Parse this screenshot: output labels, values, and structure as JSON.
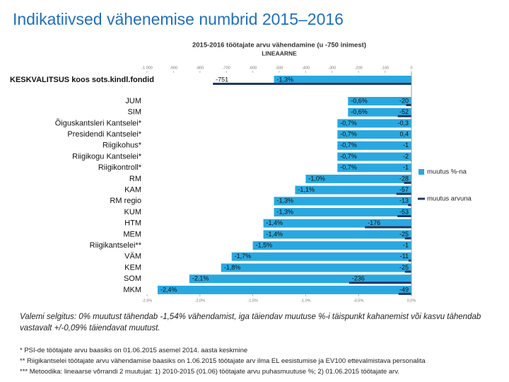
{
  "title": "Indikatiivsed vähenemise numbrid 2015–2016",
  "formula_note": "Valemi selgitus: 0% muutust tähendab -1,54% vähendamist, iga täiendav muutuse %-i täispunkt kahanemist või kasvu tähendab vastavalt +/-0,09% täiendavat muutust.",
  "footnotes": [
    "* PSI-de töötajate arvu baasiks on 01.06.2015 asemel 2014. aasta keskmine",
    "** Riigikantselei töötajate arvu vähendamise baasiks on 1.06.2015 töötajate arv ilma EL eesistumise ja EV100 ettevalmistava personalita",
    "*** Metoodika: lineaarse võrrandi 2 muutujat: 1) 2010-2015 (01.06) töötajate arvu puhasmuutuse %; 2) 01.06.2015 töötajate arv."
  ],
  "chart_data": {
    "type": "hbar",
    "title": "2015-2016 töötajate arvu vähendamine (u -750 inimest)",
    "subtitle": "LINEAARNE",
    "categories": [
      "KESKVALITSUS koos sots.kindl.fondid",
      "JUM",
      "SIM",
      "Õiguskantsleri Kantselei*",
      "Presidendi Kantselei*",
      "Riigikohus*",
      "Riigikogu Kantselei*",
      "Riigikontroll*",
      "RM",
      "KAM",
      "RM regio",
      "KUM",
      "HTM",
      "MEM",
      "Riigikantselei**",
      "VÄM",
      "KEM",
      "SOM",
      "MKM"
    ],
    "series": [
      {
        "name": "muutus %-na",
        "color": "#29a8e0",
        "axis": "x",
        "values": [
          -1.3,
          -0.6,
          -0.6,
          -0.7,
          -0.7,
          -0.7,
          -0.7,
          -0.7,
          -1.0,
          -1.1,
          -1.3,
          -1.3,
          -1.4,
          -1.4,
          -1.5,
          -1.7,
          -1.8,
          -2.1,
          -2.4
        ],
        "value_labels": [
          "-1,3%",
          "-0,6%",
          "-0,6%",
          "-0,7%",
          "-0,7%",
          "-0,7%",
          "-0,7%",
          "-0,7%",
          "-1,0%",
          "-1,1%",
          "-1,3%",
          "-1,3%",
          "-1,4%",
          "-1,4%",
          "-1,5%",
          "-1,7%",
          "-1,8%",
          "-2,1%",
          "-2,4%"
        ]
      },
      {
        "name": "muutus arvuna",
        "color": "#1f3864",
        "axis": "x2",
        "values": [
          -751,
          -20,
          -52,
          -0.3,
          0.4,
          -1,
          -2,
          -1,
          -28,
          -57,
          -13,
          -53,
          -176,
          -25,
          -1,
          -11,
          -25,
          -236,
          -49
        ],
        "value_labels": [
          "-751",
          "-20",
          "-52",
          "-0,3",
          "0,4",
          "-1",
          "-2",
          "-1",
          "-28",
          "-57",
          "-13",
          "-53",
          "-176",
          "-25",
          "-1",
          "-11",
          "-25",
          "-236",
          "-49"
        ]
      }
    ],
    "xlim": [
      -2.5,
      0
    ],
    "xticks": [
      {
        "value": -2.5,
        "label": "-2,5%"
      },
      {
        "value": -2,
        "label": "-2,0%"
      },
      {
        "value": -1.5,
        "label": "-1,5%"
      },
      {
        "value": -1,
        "label": "-1,0%"
      },
      {
        "value": -0.5,
        "label": "-0,5%"
      },
      {
        "value": 0,
        "label": "0,0%"
      }
    ],
    "x2lim": [
      -1000,
      0
    ],
    "x2ticks": [
      {
        "value": -1000,
        "label": "-1 000"
      },
      -900,
      -800,
      -700,
      -600,
      -500,
      -400,
      -300,
      -200,
      -100,
      0
    ],
    "legend": "right"
  }
}
